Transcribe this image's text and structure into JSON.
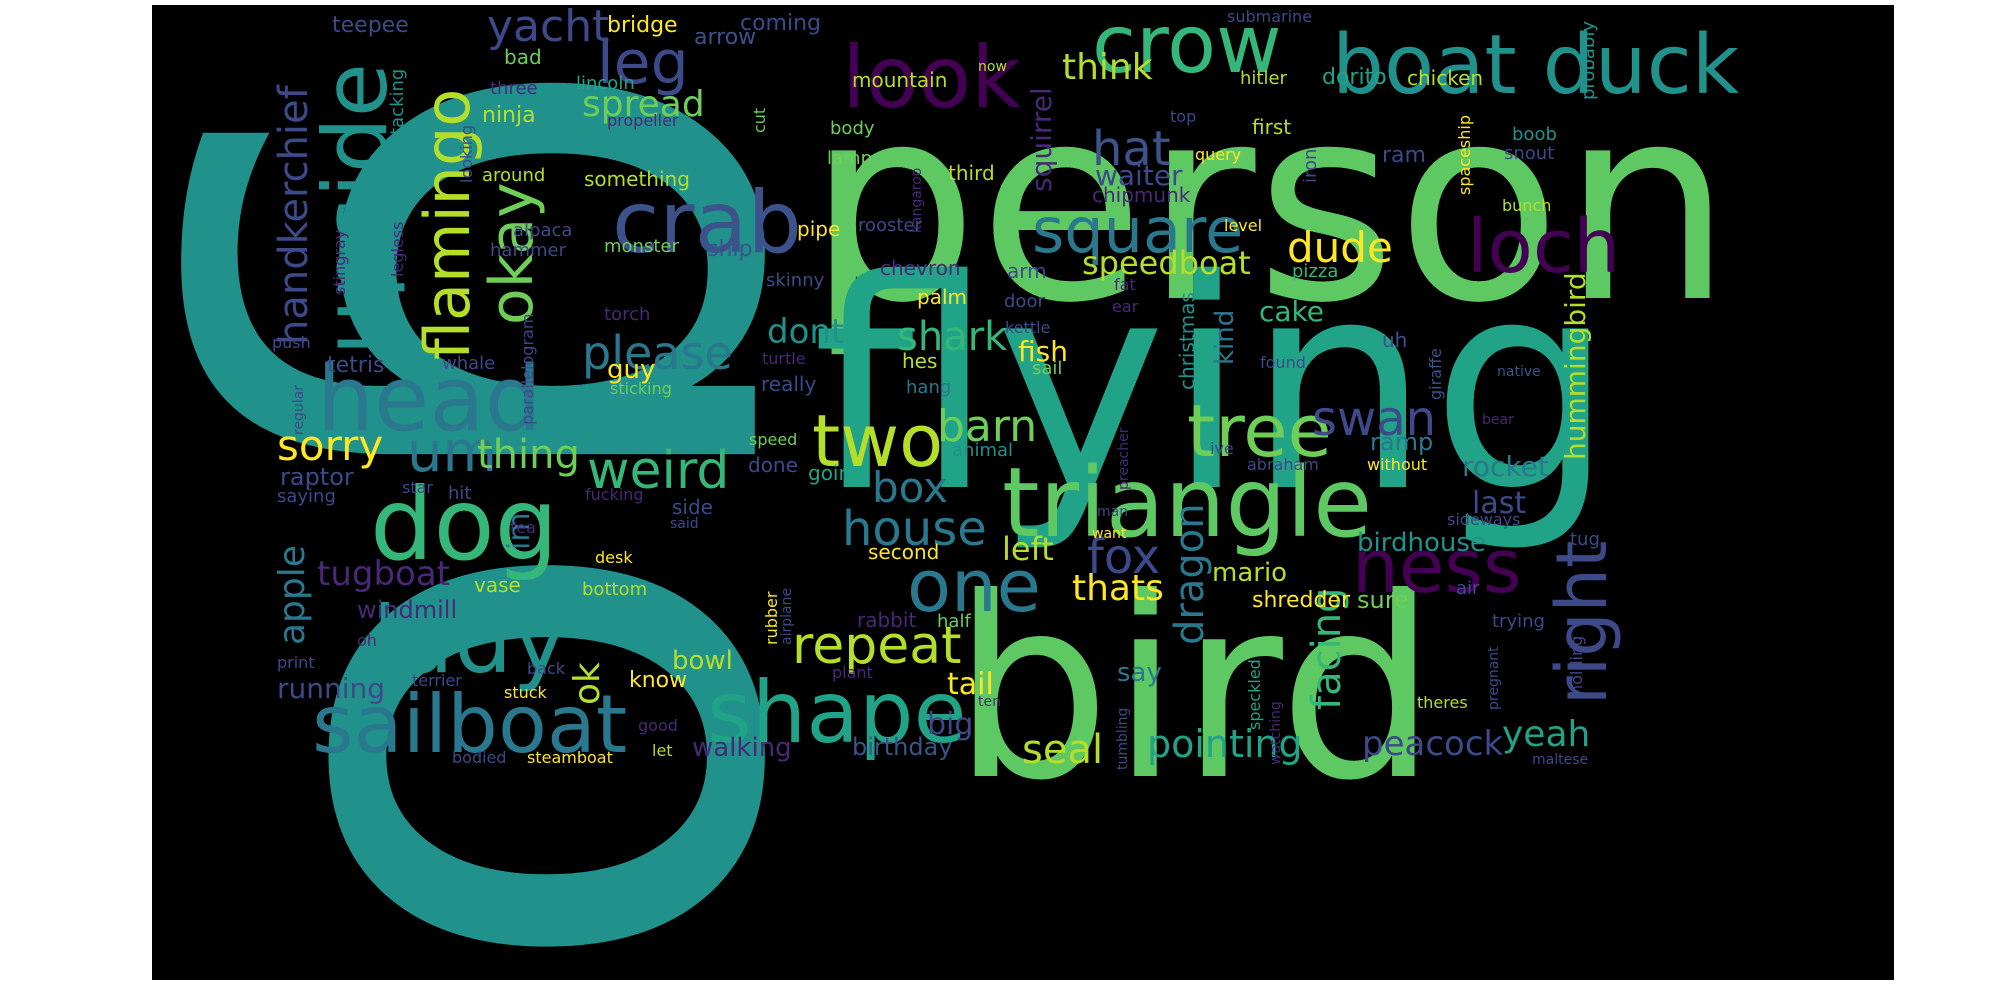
{
  "colors": {
    "background": "#000000",
    "frame": "#ffffff"
  },
  "words": [
    {
      "text": "go",
      "color": "#21918c"
    },
    {
      "text": "person",
      "color": "#5ec962"
    },
    {
      "text": "flying",
      "color": "#20a386"
    },
    {
      "text": "bird",
      "color": "#5ec962"
    },
    {
      "text": "crow",
      "color": "#35b779"
    },
    {
      "text": "boat duck",
      "color": "#21918c"
    },
    {
      "text": "look",
      "color": "#440154"
    },
    {
      "text": "upside",
      "color": "#21918c"
    },
    {
      "text": "crab",
      "color": "#3b528b"
    },
    {
      "text": "head",
      "color": "#2a788e"
    },
    {
      "text": "dog",
      "color": "#35b779"
    },
    {
      "text": "lady",
      "color": "#21918c"
    },
    {
      "text": "sailboat",
      "color": "#2a788e"
    },
    {
      "text": "shape",
      "color": "#20a386"
    },
    {
      "text": "triangle",
      "color": "#5ec962"
    },
    {
      "text": "two",
      "color": "#b5de2b"
    },
    {
      "text": "tree",
      "color": "#6ece58"
    },
    {
      "text": "one",
      "color": "#2a788e"
    },
    {
      "text": "loch",
      "color": "#440154"
    },
    {
      "text": "ness",
      "color": "#440154"
    },
    {
      "text": "right",
      "color": "#3e4989"
    },
    {
      "text": "square",
      "color": "#2a788e"
    },
    {
      "text": "flamingo",
      "color": "#b5de2b"
    },
    {
      "text": "okay",
      "color": "#6ece58"
    },
    {
      "text": "leg",
      "color": "#3e4989"
    },
    {
      "text": "yacht",
      "color": "#3e4989"
    },
    {
      "text": "handkerchief",
      "color": "#3e4989"
    },
    {
      "text": "um",
      "color": "#2a788e"
    },
    {
      "text": "weird",
      "color": "#35b779"
    },
    {
      "text": "please",
      "color": "#2a788e"
    },
    {
      "text": "repeat",
      "color": "#b5de2b"
    },
    {
      "text": "house",
      "color": "#2a788e"
    },
    {
      "text": "fox",
      "color": "#3e4989"
    },
    {
      "text": "swan",
      "color": "#3e4989"
    },
    {
      "text": "dude",
      "color": "#fde725"
    },
    {
      "text": "hat",
      "color": "#3b528b"
    },
    {
      "text": "barn",
      "color": "#6ece58"
    },
    {
      "text": "shark",
      "color": "#35b779"
    },
    {
      "text": "sorry",
      "color": "#fde725"
    },
    {
      "text": "thing",
      "color": "#6ece58"
    },
    {
      "text": "box",
      "color": "#2a788e"
    },
    {
      "text": "spread",
      "color": "#6ece58"
    },
    {
      "text": "think",
      "color": "#b5de2b"
    },
    {
      "text": "speedboat",
      "color": "#b5de2b"
    },
    {
      "text": "dragon",
      "color": "#2a788e"
    },
    {
      "text": "facing",
      "color": "#35b779"
    },
    {
      "text": "pointing",
      "color": "#20a386"
    },
    {
      "text": "seal",
      "color": "#b5de2b"
    },
    {
      "text": "peacock",
      "color": "#3e4989"
    },
    {
      "text": "yeah",
      "color": "#20a386"
    },
    {
      "text": "thats",
      "color": "#fde725"
    },
    {
      "text": "tugboat",
      "color": "#482878"
    },
    {
      "text": "apple",
      "color": "#2a788e"
    },
    {
      "text": "ok",
      "color": "#b5de2b"
    },
    {
      "text": "hummingbird",
      "color": "#b5de2b"
    },
    {
      "text": "rocket",
      "color": "#2a788e"
    },
    {
      "text": "left",
      "color": "#b5de2b"
    },
    {
      "text": "dont",
      "color": "#21918c"
    },
    {
      "text": "im",
      "color": "#2a788e"
    },
    {
      "text": "guy",
      "color": "#fde725"
    },
    {
      "text": "tail",
      "color": "#fde725"
    },
    {
      "text": "big",
      "color": "#3e4989"
    },
    {
      "text": "squirrel",
      "color": "#482878"
    },
    {
      "text": "waiter",
      "color": "#3e4989"
    },
    {
      "text": "cake",
      "color": "#35b779"
    },
    {
      "text": "fish",
      "color": "#fde725"
    },
    {
      "text": "kind",
      "color": "#2a788e"
    },
    {
      "text": "christmas",
      "color": "#21918c"
    },
    {
      "text": "ramp",
      "color": "#2a788e"
    },
    {
      "text": "last",
      "color": "#3e4989"
    },
    {
      "text": "walking",
      "color": "#482878"
    },
    {
      "text": "birthday",
      "color": "#3b528b"
    },
    {
      "text": "running",
      "color": "#3e4989"
    },
    {
      "text": "windmill",
      "color": "#482878"
    },
    {
      "text": "bowl",
      "color": "#b5de2b"
    },
    {
      "text": "know",
      "color": "#fde725"
    },
    {
      "text": "mario",
      "color": "#b5de2b"
    },
    {
      "text": "say",
      "color": "#2a788e"
    },
    {
      "text": "birdhouse",
      "color": "#21918c"
    },
    {
      "text": "shredder",
      "color": "#fde725"
    },
    {
      "text": "sure",
      "color": "#6ece58"
    },
    {
      "text": "raptor",
      "color": "#3e4989"
    },
    {
      "text": "teepee",
      "color": "#3e4989"
    },
    {
      "text": "bridge",
      "color": "#fde725"
    },
    {
      "text": "coming",
      "color": "#3e4989"
    },
    {
      "text": "arrow",
      "color": "#3b528b"
    },
    {
      "text": "mountain",
      "color": "#b5de2b"
    },
    {
      "text": "submarine",
      "color": "#3e4989"
    },
    {
      "text": "hitler",
      "color": "#b5de2b"
    },
    {
      "text": "dorito",
      "color": "#20a386"
    },
    {
      "text": "chicken",
      "color": "#b5de2b"
    },
    {
      "text": "probably",
      "color": "#21918c"
    },
    {
      "text": "bad",
      "color": "#6ece58"
    },
    {
      "text": "three",
      "color": "#482878"
    },
    {
      "text": "lincoln",
      "color": "#20a386"
    },
    {
      "text": "ninja",
      "color": "#b5de2b"
    },
    {
      "text": "attacking",
      "color": "#21918c"
    },
    {
      "text": "propeller",
      "color": "#482878"
    },
    {
      "text": "body",
      "color": "#6ece58"
    },
    {
      "text": "cut",
      "color": "#6ece58"
    },
    {
      "text": "lamp",
      "color": "#6ece58"
    },
    {
      "text": "first",
      "color": "#b5de2b"
    },
    {
      "text": "query",
      "color": "#fde725"
    },
    {
      "text": "top",
      "color": "#3e4989"
    },
    {
      "text": "iron",
      "color": "#3e4989"
    },
    {
      "text": "ram",
      "color": "#3e4989"
    },
    {
      "text": "boob",
      "color": "#21918c"
    },
    {
      "text": "snout",
      "color": "#3e4989"
    },
    {
      "text": "spaceship",
      "color": "#fde725"
    },
    {
      "text": "bunch",
      "color": "#b5de2b"
    },
    {
      "text": "third",
      "color": "#b5de2b"
    },
    {
      "text": "chipmunk",
      "color": "#482878"
    },
    {
      "text": "around",
      "color": "#b5de2b"
    },
    {
      "text": "something",
      "color": "#b5de2b"
    },
    {
      "text": "looking",
      "color": "#3e4989"
    },
    {
      "text": "kangaroo",
      "color": "#482878"
    },
    {
      "text": "now",
      "color": "#b5de2b"
    },
    {
      "text": "rooster",
      "color": "#3e4989"
    },
    {
      "text": "pipe",
      "color": "#fde725"
    },
    {
      "text": "level",
      "color": "#fde725"
    },
    {
      "text": "monster",
      "color": "#6ece58"
    },
    {
      "text": "ship",
      "color": "#3b528b"
    },
    {
      "text": "alpaca",
      "color": "#3e4989"
    },
    {
      "text": "hammer",
      "color": "#3e4989"
    },
    {
      "text": "legless",
      "color": "#482878"
    },
    {
      "text": "stingray",
      "color": "#482878"
    },
    {
      "text": "skinny",
      "color": "#3e4989"
    },
    {
      "text": "chevron",
      "color": "#482878"
    },
    {
      "text": "arm",
      "color": "#3e4989"
    },
    {
      "text": "pizza",
      "color": "#35b779"
    },
    {
      "text": "fat",
      "color": "#482878"
    },
    {
      "text": "ear",
      "color": "#482878"
    },
    {
      "text": "palm",
      "color": "#fde725"
    },
    {
      "text": "door",
      "color": "#3e4989"
    },
    {
      "text": "parallelogram",
      "color": "#3e4989"
    },
    {
      "text": "torch",
      "color": "#482878"
    },
    {
      "text": "kettle",
      "color": "#3e4989"
    },
    {
      "text": "push",
      "color": "#3e4989"
    },
    {
      "text": "tetris",
      "color": "#3e4989"
    },
    {
      "text": "whale",
      "color": "#3e4989"
    },
    {
      "text": "turtle",
      "color": "#482878"
    },
    {
      "text": "hes",
      "color": "#b5de2b"
    },
    {
      "text": "sail",
      "color": "#6ece58"
    },
    {
      "text": "found",
      "color": "#3e4989"
    },
    {
      "text": "uh",
      "color": "#3b528b"
    },
    {
      "text": "giraffe",
      "color": "#3b528b"
    },
    {
      "text": "native",
      "color": "#3b528b"
    },
    {
      "text": "regular",
      "color": "#3e4989"
    },
    {
      "text": "sticking",
      "color": "#6ece58"
    },
    {
      "text": "really",
      "color": "#3e4989"
    },
    {
      "text": "hang",
      "color": "#2a788e"
    },
    {
      "text": "speed",
      "color": "#6ece58"
    },
    {
      "text": "animal",
      "color": "#21918c"
    },
    {
      "text": "preacher",
      "color": "#482878"
    },
    {
      "text": "ive",
      "color": "#3e4989"
    },
    {
      "text": "abraham",
      "color": "#3e4989"
    },
    {
      "text": "without",
      "color": "#fde725"
    },
    {
      "text": "bear",
      "color": "#482878"
    },
    {
      "text": "done",
      "color": "#3e4989"
    },
    {
      "text": "going",
      "color": "#20a386"
    },
    {
      "text": "saying",
      "color": "#3e4989"
    },
    {
      "text": "star",
      "color": "#3e4989"
    },
    {
      "text": "hit",
      "color": "#3e4989"
    },
    {
      "text": "fucking",
      "color": "#482878"
    },
    {
      "text": "side",
      "color": "#3e4989"
    },
    {
      "text": "said",
      "color": "#3e4989"
    },
    {
      "text": "man",
      "color": "#3e4989"
    },
    {
      "text": "want",
      "color": "#fde725"
    },
    {
      "text": "sideways",
      "color": "#3e4989"
    },
    {
      "text": "tug",
      "color": "#3e4989"
    },
    {
      "text": "tea",
      "color": "#482878"
    },
    {
      "text": "second",
      "color": "#fde725"
    },
    {
      "text": "desk",
      "color": "#fde725"
    },
    {
      "text": "vase",
      "color": "#b5de2b"
    },
    {
      "text": "bottom",
      "color": "#b5de2b"
    },
    {
      "text": "rubber",
      "color": "#fde725"
    },
    {
      "text": "airplane",
      "color": "#3e4989"
    },
    {
      "text": "air",
      "color": "#3e4989"
    },
    {
      "text": "trying",
      "color": "#3e4989"
    },
    {
      "text": "speckled",
      "color": "#20a386"
    },
    {
      "text": "rabbit",
      "color": "#482878"
    },
    {
      "text": "half",
      "color": "#6ece58"
    },
    {
      "text": "oh",
      "color": "#482878"
    },
    {
      "text": "holding",
      "color": "#3e4989"
    },
    {
      "text": "pregnant",
      "color": "#3e4989"
    },
    {
      "text": "print",
      "color": "#3e4989"
    },
    {
      "text": "plant",
      "color": "#482878"
    },
    {
      "text": "back",
      "color": "#3e4989"
    },
    {
      "text": "terrier",
      "color": "#3e4989"
    },
    {
      "text": "stuck",
      "color": "#fde725"
    },
    {
      "text": "ten",
      "color": "#482878"
    },
    {
      "text": "watching",
      "color": "#482878"
    },
    {
      "text": "theres",
      "color": "#b5de2b"
    },
    {
      "text": "good",
      "color": "#482878"
    },
    {
      "text": "tumbling",
      "color": "#3e4989"
    },
    {
      "text": "bodied",
      "color": "#3e4989"
    },
    {
      "text": "steamboat",
      "color": "#fde725"
    },
    {
      "text": "let",
      "color": "#b5de2b"
    },
    {
      "text": "maltese",
      "color": "#3e4989"
    }
  ]
}
